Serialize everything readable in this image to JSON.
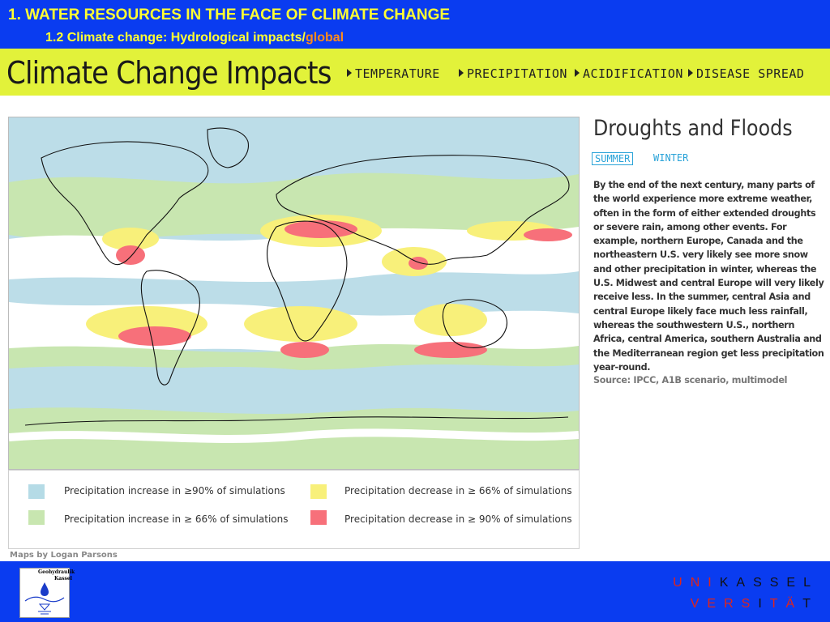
{
  "header": {
    "title": "1. WATER RESOURCES IN THE FACE OF CLIMATE CHANGE",
    "subtitle_prefix": "1.2  Climate change: Hydrological impacts/",
    "subtitle_accent": "global"
  },
  "banner": {
    "title": "Climate Change Impacts",
    "nav": [
      "TEMPERATURE",
      "PRECIPITATION",
      "ACIDIFICATION",
      "DISEASE SPREAD"
    ]
  },
  "legend": [
    {
      "label": "Precipitation increase in ≥90% of simulations",
      "color": "#b5dbe6"
    },
    {
      "label": "Precipitation increase in ≥ 66% of simulations",
      "color": "#c8e6b0"
    },
    {
      "label": "Precipitation decrease in ≥ 66% of simulations",
      "color": "#f8f07a"
    },
    {
      "label": "Precipitation decrease in ≥ 90% of simulations",
      "color": "#f7707a"
    }
  ],
  "credit": "Maps by Logan Parsons",
  "article": {
    "title": "Droughts and Floods",
    "seasons": [
      "SUMMER",
      "WINTER"
    ],
    "active_season": "SUMMER",
    "body": "By the end of the next century, many parts of the world experience more extreme weather, often in the form of either extended droughts or severe rain, among other events. For example, northern Europe, Canada and the northeastern U.S. very likely see more snow and other precipitation in winter, whereas the U.S. Midwest and central Europe will very likely receive less. In the summer, central Asia and central Europe likely face much less rainfall, whereas the southwestern U.S., northern Africa, central America, southern Australia and the Mediterranean region get less precipitation year-round.",
    "source": "Source: IPCC, A1B scenario, multimodel"
  },
  "footer": {
    "logo_line1": "Geohydraulik",
    "logo_line2": "Kassel",
    "uni_line1": [
      [
        "U",
        "r"
      ],
      [
        "N",
        "r"
      ],
      [
        "I",
        "r"
      ],
      [
        "K",
        "b"
      ],
      [
        "A",
        "b"
      ],
      [
        "S",
        "b"
      ],
      [
        "S",
        "b"
      ],
      [
        "E",
        "b"
      ],
      [
        "L",
        "b"
      ]
    ],
    "uni_line2": [
      [
        "V",
        "r"
      ],
      [
        "E",
        "r"
      ],
      [
        "R",
        "r"
      ],
      [
        "S",
        "r"
      ],
      [
        "I",
        "b"
      ],
      [
        "T",
        "r"
      ],
      [
        "Ä",
        "r"
      ],
      [
        "T",
        "b"
      ]
    ]
  },
  "colors": {
    "slide_blue": "#0a3cf0",
    "header_yellow": "#ffff33",
    "accent_orange": "#ff8c1a",
    "banner_green": "#e2f23a",
    "season_blue": "#2aa3d8"
  }
}
